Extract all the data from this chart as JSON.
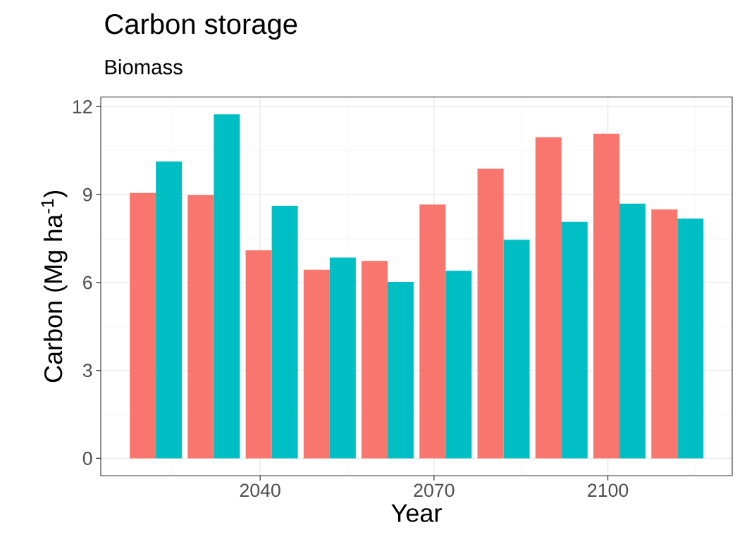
{
  "chart_data": {
    "type": "bar",
    "title": "Carbon storage",
    "subtitle": "Biomass",
    "xlabel": "Year",
    "ylabel": "Carbon (Mg ha$^{-1}$)",
    "x": [
      2022,
      2032,
      2042,
      2052,
      2062,
      2072,
      2082,
      2092,
      2102,
      2112
    ],
    "series": [
      {
        "color": "#f8766d",
        "values": [
          9.06,
          8.98,
          7.1,
          6.44,
          6.74,
          8.66,
          9.88,
          10.96,
          11.08,
          8.49
        ]
      },
      {
        "color": "#00bfc4",
        "values": [
          10.13,
          11.74,
          8.62,
          6.85,
          6.02,
          6.4,
          7.46,
          8.07,
          8.69,
          8.18
        ]
      }
    ],
    "xlim": [
      2012.5,
      2121.45
    ],
    "xticks": [
      2040,
      2070,
      2100
    ],
    "ylim": [
      -0.59,
      12.33
    ],
    "yticks": [
      0,
      3,
      6,
      9,
      12
    ],
    "grid": true
  }
}
